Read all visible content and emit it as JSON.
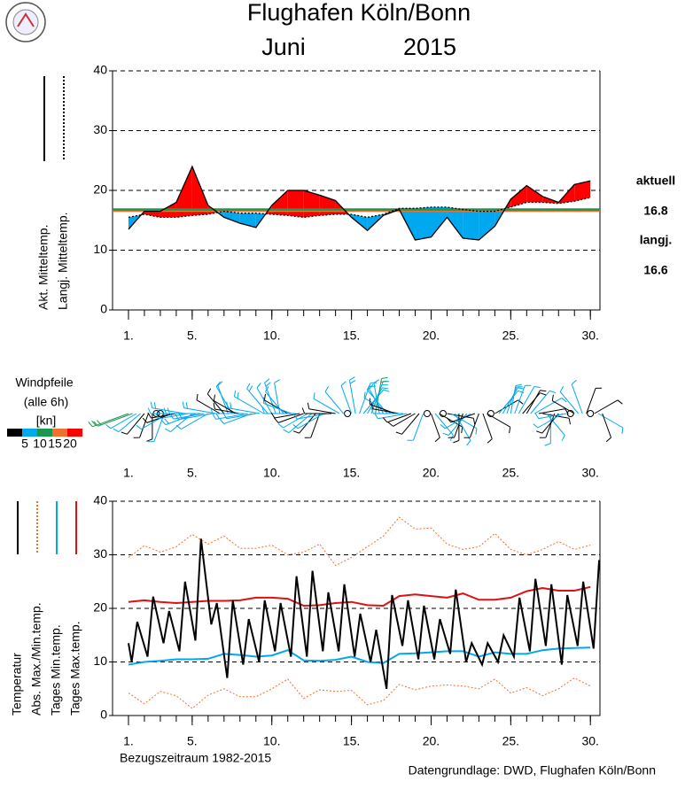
{
  "title": "Flughafen Köln/Bonn",
  "month": "Juni",
  "year": "2015",
  "reference_period": "Bezugszeitraum 1982-2015",
  "source": "Datengrundlage: DWD, Flughafen Köln/Bonn",
  "chart_data": [
    {
      "type": "area_difference",
      "x": [
        1,
        2,
        3,
        4,
        5,
        6,
        7,
        8,
        9,
        10,
        11,
        12,
        13,
        14,
        15,
        16,
        17,
        18,
        19,
        20,
        21,
        22,
        23,
        24,
        25,
        26,
        27,
        28,
        29,
        30
      ],
      "series": [
        {
          "name": "Akt. Mitteltemp.",
          "color": "#000000",
          "dash": "solid",
          "values": [
            13.5,
            16.5,
            16.5,
            18,
            24,
            17.5,
            15.5,
            14.5,
            13.8,
            17.5,
            20,
            20,
            19.2,
            18.3,
            15.5,
            13.3,
            15.8,
            16.8,
            11.7,
            12.2,
            15.5,
            12,
            11.7,
            14,
            18.5,
            20.8,
            19,
            18,
            21,
            21.6
          ]
        },
        {
          "name": "Langj. Mitteltemp.",
          "color": "#000000",
          "dash": "dotted",
          "values": [
            15.5,
            16,
            15.5,
            15.5,
            15.8,
            16,
            16.5,
            16.2,
            16.2,
            16,
            15.8,
            15.5,
            15.8,
            16,
            16,
            15.5,
            16,
            17,
            17,
            17.2,
            17.2,
            16.8,
            16.5,
            16.5,
            17.2,
            18,
            18,
            17.8,
            18.2,
            18.8
          ]
        }
      ],
      "above_color": "#ff0000",
      "below_color": "#00a8f0",
      "means": [
        {
          "name": "aktuell",
          "value": 16.8,
          "color": "#1a9850"
        },
        {
          "name": "langj.",
          "value": 16.6,
          "color": "#f07030"
        }
      ],
      "xlim": [
        0,
        30.6
      ],
      "ylim": [
        0,
        40
      ],
      "yticks": [
        0,
        10,
        20,
        30,
        40
      ],
      "grid": true,
      "xticks": [
        {
          "value": 1,
          "label": "1."
        },
        {
          "value": 5,
          "label": "5."
        },
        {
          "value": 10,
          "label": "10."
        },
        {
          "value": 15,
          "label": "15."
        },
        {
          "value": 20,
          "label": "20."
        },
        {
          "value": 25,
          "label": "25."
        },
        {
          "value": 30,
          "label": "30."
        }
      ],
      "minor_xticks": [
        1,
        2,
        3,
        4,
        5,
        6,
        7,
        8,
        9,
        10,
        11,
        12,
        13,
        14,
        15,
        16,
        17,
        18,
        19,
        20,
        21,
        22,
        23,
        24,
        25,
        26,
        27,
        28,
        29,
        30
      ]
    },
    {
      "type": "wind_barbs",
      "title": "Windpfeile",
      "subtitle": "(alle 6h)",
      "unit": "[kn]",
      "scale": {
        "colors": [
          "#000000",
          "#00a8f0",
          "#1a9850",
          "#f07030",
          "#ff0000"
        ],
        "ticks": [
          5,
          10,
          15,
          20
        ]
      },
      "xlim": [
        0,
        30.6
      ],
      "xticks": [
        {
          "value": 1,
          "label": "1."
        },
        {
          "value": 5,
          "label": "5."
        },
        {
          "value": 10,
          "label": "10."
        },
        {
          "value": 15,
          "label": "15."
        },
        {
          "value": 20,
          "label": "20."
        },
        {
          "value": 25,
          "label": "25."
        },
        {
          "value": 30,
          "label": "30."
        }
      ],
      "x": [
        1,
        1.25,
        1.5,
        1.75,
        2,
        2.25,
        2.5,
        2.75,
        3,
        3.25,
        3.5,
        3.75,
        4,
        4.25,
        4.5,
        4.75,
        5,
        5.25,
        5.5,
        5.75,
        6,
        6.25,
        6.5,
        6.75,
        7,
        7.25,
        7.5,
        7.75,
        8,
        8.25,
        8.5,
        8.75,
        9,
        9.25,
        9.5,
        9.75,
        10,
        10.25,
        10.5,
        10.75,
        11,
        11.25,
        11.5,
        11.75,
        12,
        12.25,
        12.5,
        12.75,
        13,
        13.25,
        13.5,
        13.75,
        14,
        14.25,
        14.5,
        14.75,
        15,
        15.25,
        15.5,
        15.75,
        16,
        16.25,
        16.5,
        16.75,
        17,
        17.25,
        17.5,
        17.75,
        18,
        18.25,
        18.5,
        18.75,
        19,
        19.25,
        19.5,
        19.75,
        20,
        20.25,
        20.5,
        20.75,
        21,
        21.25,
        21.5,
        21.75,
        22,
        22.25,
        22.5,
        22.75,
        23,
        23.25,
        23.5,
        23.75,
        24,
        24.25,
        24.5,
        24.75,
        25,
        25.25,
        25.5,
        25.75,
        26,
        26.25,
        26.5,
        26.75,
        27,
        27.25,
        27.5,
        27.75,
        28,
        28.25,
        28.5,
        28.75,
        29,
        29.25,
        29.5,
        29.75,
        30,
        30.25,
        30.5,
        30.75
      ],
      "speed": [
        12,
        11,
        6,
        5,
        4,
        3,
        3,
        2,
        2,
        6,
        7,
        4,
        3,
        6,
        8,
        6,
        5,
        8,
        9,
        7,
        7,
        9,
        8,
        4,
        3,
        6,
        7,
        3,
        3,
        7,
        8,
        6,
        6,
        8,
        9,
        8,
        6,
        8,
        7,
        5,
        4,
        6,
        7,
        3,
        4,
        5,
        6,
        3,
        3,
        6,
        7,
        4,
        4,
        6,
        5,
        2,
        6,
        9,
        8,
        7,
        6,
        9,
        10,
        7,
        5,
        7,
        7,
        4,
        4,
        6,
        6,
        3,
        3,
        4,
        5,
        2,
        3,
        5,
        4,
        2,
        4,
        6,
        7,
        4,
        3,
        5,
        6,
        3,
        3,
        4,
        4,
        2,
        4,
        6,
        6,
        5,
        5,
        6,
        7,
        4,
        4,
        6,
        7,
        4,
        4,
        5,
        6,
        3,
        3,
        5,
        5,
        2,
        3,
        5,
        7,
        4,
        2,
        4,
        5,
        3
      ],
      "direction": [
        250,
        250,
        240,
        230,
        220,
        200,
        180,
        160,
        150,
        200,
        240,
        250,
        260,
        270,
        280,
        260,
        230,
        250,
        270,
        260,
        240,
        260,
        280,
        300,
        320,
        340,
        330,
        300,
        280,
        270,
        260,
        250,
        260,
        280,
        300,
        320,
        330,
        340,
        350,
        320,
        300,
        290,
        270,
        260,
        250,
        240,
        230,
        220,
        200,
        240,
        260,
        270,
        280,
        300,
        320,
        330,
        340,
        350,
        20,
        40,
        30,
        20,
        10,
        350,
        330,
        320,
        300,
        290,
        280,
        270,
        260,
        250,
        240,
        220,
        200,
        180,
        160,
        140,
        120,
        110,
        100,
        120,
        150,
        180,
        200,
        220,
        240,
        250,
        200,
        160,
        120,
        90,
        60,
        40,
        30,
        20,
        10,
        20,
        30,
        40,
        30,
        40,
        60,
        80,
        100,
        140,
        180,
        200,
        220,
        240,
        260,
        280,
        300,
        320,
        340,
        20,
        40,
        60,
        120,
        160
      ]
    },
    {
      "type": "line",
      "x": [
        1,
        2,
        3,
        4,
        5,
        6,
        7,
        8,
        9,
        10,
        11,
        12,
        13,
        14,
        15,
        16,
        17,
        18,
        19,
        20,
        21,
        22,
        23,
        24,
        25,
        26,
        27,
        28,
        29,
        30
      ],
      "series": [
        {
          "name": "Temperatur",
          "color": "#000000",
          "dash": "solid",
          "x": [
            1,
            1.2,
            1.55,
            2.2,
            2.55,
            3.2,
            3.55,
            4.2,
            4.55,
            5.2,
            5.55,
            6.2,
            6.55,
            7.2,
            7.55,
            8.2,
            8.55,
            9.2,
            9.55,
            10.2,
            10.55,
            11.2,
            11.55,
            12.2,
            12.55,
            13.2,
            13.55,
            14.2,
            14.55,
            15.2,
            15.55,
            16.2,
            16.55,
            17.2,
            17.55,
            18.2,
            18.55,
            19.2,
            19.55,
            20.2,
            20.55,
            21.2,
            21.55,
            22.2,
            22.55,
            23.2,
            23.55,
            24.2,
            24.55,
            25.2,
            25.55,
            26.2,
            26.55,
            27.2,
            27.55,
            28.2,
            28.55,
            29.2,
            29.55,
            30.2,
            30.55
          ],
          "values": [
            13.5,
            10,
            17.5,
            11,
            22.2,
            13.5,
            19.5,
            12,
            25,
            14,
            33,
            17,
            21,
            7,
            21.5,
            9.5,
            18,
            10,
            21.5,
            12,
            21,
            11,
            26,
            11,
            27,
            12,
            23,
            12,
            24.5,
            11,
            19,
            10,
            16,
            5,
            22.5,
            13,
            21.5,
            10.5,
            20.5,
            10.5,
            18,
            11.5,
            23.5,
            10,
            13.5,
            9.5,
            13.5,
            10,
            15,
            11,
            22,
            12,
            25.5,
            13,
            24.5,
            9.5,
            22.5,
            13,
            25,
            12.5,
            29
          ]
        },
        {
          "name": "Abs. Max./Min.temp.",
          "color": "#f07030",
          "dash": "dotted",
          "values": [
            29.5,
            31.7,
            30.5,
            31.5,
            33.8,
            32,
            33.5,
            31.2,
            31.2,
            31.8,
            30,
            30.5,
            32,
            28,
            29.5,
            31.5,
            33.5,
            37,
            34.8,
            35,
            32,
            31,
            31.5,
            34,
            31,
            30,
            31,
            32.5,
            31,
            31.8
          ],
          "values_min": [
            4.2,
            2.2,
            4.5,
            3.7,
            1.3,
            3.8,
            5,
            3.5,
            3.5,
            5,
            6.8,
            3.2,
            4.8,
            4.5,
            4.7,
            2,
            2.8,
            5.8,
            4.8,
            5.5,
            5.7,
            5.5,
            5,
            6.8,
            4.2,
            5.2,
            3.7,
            5,
            7,
            5.5
          ]
        },
        {
          "name": "Tages Min.temp.",
          "color": "#00a8f0",
          "dash": "solid",
          "values": [
            9.5,
            10,
            10.2,
            10.5,
            10.5,
            10.6,
            11.5,
            11.3,
            11,
            11.2,
            12.2,
            10.3,
            10.2,
            10.4,
            11,
            10,
            9.8,
            11.5,
            11.6,
            11.8,
            12,
            12,
            11,
            11.8,
            11.5,
            11.5,
            12.2,
            12.5,
            12.6,
            12.7
          ]
        },
        {
          "name": "Tages Max.temp.",
          "color": "#e01010",
          "dash": "solid",
          "values": [
            21.2,
            21.5,
            21.2,
            21,
            21.2,
            21.4,
            21.4,
            21.5,
            22,
            22,
            21.8,
            20.5,
            20.6,
            21,
            21.2,
            20.6,
            20.5,
            22.3,
            22.6,
            22.3,
            22,
            22.8,
            21.6,
            21.6,
            22,
            23.2,
            23.8,
            23.3,
            23.3,
            24
          ]
        }
      ],
      "xlim": [
        0,
        30.6
      ],
      "ylim": [
        0,
        40
      ],
      "yticks": [
        0,
        10,
        20,
        30,
        40
      ],
      "grid": true,
      "xticks": [
        {
          "value": 1,
          "label": "1."
        },
        {
          "value": 5,
          "label": "5."
        },
        {
          "value": 10,
          "label": "10."
        },
        {
          "value": 15,
          "label": "15."
        },
        {
          "value": 20,
          "label": "20."
        },
        {
          "value": 25,
          "label": "25."
        },
        {
          "value": 30,
          "label": "30."
        }
      ],
      "minor_xticks": [
        1,
        2,
        3,
        4,
        5,
        6,
        7,
        8,
        9,
        10,
        11,
        12,
        13,
        14,
        15,
        16,
        17,
        18,
        19,
        20,
        21,
        22,
        23,
        24,
        25,
        26,
        27,
        28,
        29,
        30
      ]
    }
  ]
}
